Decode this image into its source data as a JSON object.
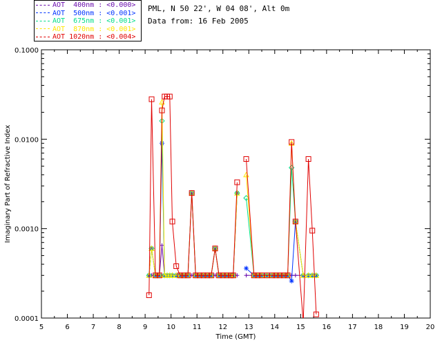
{
  "header": {
    "line1": "PML, N 50 22', W 04 08', Alt 0m",
    "line2": "Data from: 16 Feb 2005"
  },
  "chart_data": {
    "type": "line",
    "xlabel": "Time (GMT)",
    "ylabel": "Imaginary Part of Refractive Index",
    "xlim": [
      5,
      20
    ],
    "ylim": [
      0.0001,
      0.1
    ],
    "yscale": "log",
    "grid": false,
    "legend_placement": "top-left",
    "x_ticks": [
      "5",
      "6",
      "7",
      "8",
      "9",
      "10",
      "11",
      "12",
      "13",
      "14",
      "15",
      "16",
      "17",
      "18",
      "19",
      "20"
    ],
    "y_ticks": [
      "0.0001",
      "0.0010",
      "0.0100",
      "0.1000"
    ],
    "series": [
      {
        "name": "AOT  400nm : <0.000>",
        "color": "#6a0dad",
        "marker": "plus",
        "x": [
          9.15,
          9.25,
          9.4,
          9.55,
          9.65,
          9.75,
          9.85,
          9.95,
          10.05,
          10.2,
          10.35,
          10.5,
          10.65,
          10.8,
          10.95,
          11.1,
          11.25,
          11.4,
          11.55,
          11.7,
          11.85,
          12.0,
          12.15,
          12.3,
          12.4,
          12.55,
          12.9,
          13.2,
          13.35,
          13.5,
          13.7,
          13.9,
          14.05,
          14.2,
          14.35,
          14.5,
          14.65,
          14.8,
          15.1,
          15.3,
          15.45,
          15.6
        ],
        "y": [
          0.0003,
          0.0003,
          0.0003,
          0.0003,
          0.00065,
          0.0003,
          0.0003,
          0.0003,
          0.0003,
          0.0003,
          0.0003,
          0.0003,
          0.0003,
          0.0003,
          0.0003,
          0.0003,
          0.0003,
          0.0003,
          0.0003,
          0.0003,
          0.0003,
          0.0003,
          0.0003,
          0.0003,
          0.0003,
          0.0003,
          0.0003,
          0.0003,
          0.0003,
          0.0003,
          0.0003,
          0.0003,
          0.0003,
          0.0003,
          0.0003,
          0.0003,
          0.0003,
          0.0003,
          0.0003,
          0.0003,
          0.0003,
          0.0003
        ]
      },
      {
        "name": "AOT  500nm : <0.001>",
        "color": "#0033ff",
        "marker": "asterisk",
        "x": [
          9.15,
          9.25,
          9.4,
          9.55,
          9.65,
          9.75,
          9.85,
          9.95,
          10.05,
          10.2,
          10.35,
          10.5,
          10.65,
          10.8,
          10.95,
          11.1,
          11.25,
          11.4,
          11.55,
          11.7,
          11.85,
          12.0,
          12.15,
          12.3,
          12.4,
          12.55,
          12.9,
          13.2,
          13.35,
          13.5,
          13.7,
          13.9,
          14.05,
          14.2,
          14.35,
          14.5,
          14.65,
          14.8,
          15.1,
          15.3,
          15.45,
          15.6
        ],
        "y": [
          0.0003,
          0.0006,
          0.0003,
          0.0003,
          0.009,
          0.0003,
          0.0003,
          0.0003,
          0.0003,
          0.0003,
          0.0003,
          0.0003,
          0.0003,
          0.0025,
          0.0003,
          0.0003,
          0.0003,
          0.0003,
          0.0003,
          0.0006,
          0.0003,
          0.0003,
          0.0003,
          0.0003,
          0.0003,
          0.0025,
          0.00036,
          0.0003,
          0.0003,
          0.0003,
          0.0003,
          0.0003,
          0.0003,
          0.0003,
          0.0003,
          0.0003,
          0.00026,
          0.0012,
          0.0003,
          0.0003,
          0.0003,
          0.0003
        ]
      },
      {
        "name": "AOT  675nm : <0.001>",
        "color": "#00dd88",
        "marker": "diamond",
        "x": [
          9.15,
          9.25,
          9.4,
          9.55,
          9.65,
          9.75,
          9.85,
          9.95,
          10.05,
          10.2,
          10.35,
          10.5,
          10.65,
          10.8,
          10.95,
          11.1,
          11.25,
          11.4,
          11.55,
          11.7,
          11.85,
          12.0,
          12.15,
          12.3,
          12.4,
          12.55,
          12.9,
          13.2,
          13.35,
          13.5,
          13.7,
          13.9,
          14.05,
          14.2,
          14.35,
          14.5,
          14.65,
          14.8,
          15.1,
          15.3,
          15.45,
          15.6
        ],
        "y": [
          0.0003,
          0.0006,
          0.0003,
          0.0003,
          0.016,
          0.0003,
          0.0003,
          0.0003,
          0.0003,
          0.0003,
          0.0003,
          0.0003,
          0.0003,
          0.0025,
          0.0003,
          0.0003,
          0.0003,
          0.0003,
          0.0003,
          0.0006,
          0.0003,
          0.0003,
          0.0003,
          0.0003,
          0.0003,
          0.0025,
          0.0022,
          0.0003,
          0.0003,
          0.0003,
          0.0003,
          0.0003,
          0.0003,
          0.0003,
          0.0003,
          0.0003,
          0.0048,
          0.0012,
          0.0003,
          0.0003,
          0.0003,
          0.0003
        ]
      },
      {
        "name": "AOT  870nm : <0.001>",
        "color": "#ffe600",
        "marker": "triangle",
        "x": [
          9.15,
          9.25,
          9.4,
          9.55,
          9.65,
          9.75,
          9.85,
          9.95,
          10.05,
          10.2,
          10.35,
          10.5,
          10.65,
          10.8,
          10.95,
          11.1,
          11.25,
          11.4,
          11.55,
          11.7,
          11.85,
          12.0,
          12.15,
          12.3,
          12.4,
          12.55,
          12.9,
          13.2,
          13.35,
          13.5,
          13.7,
          13.9,
          14.05,
          14.2,
          14.35,
          14.5,
          14.65,
          14.8,
          15.1,
          15.3,
          15.45,
          15.6
        ],
        "y": [
          0.0003,
          0.0006,
          0.0003,
          0.0003,
          0.026,
          0.0003,
          0.0003,
          0.0003,
          0.0003,
          0.0003,
          0.0003,
          0.0003,
          0.0003,
          0.0025,
          0.0003,
          0.0003,
          0.0003,
          0.0003,
          0.0003,
          0.0006,
          0.0003,
          0.0003,
          0.0003,
          0.0003,
          0.0003,
          0.0025,
          0.004,
          0.0003,
          0.0003,
          0.0003,
          0.0003,
          0.0003,
          0.0003,
          0.0003,
          0.0003,
          0.0003,
          0.009,
          0.0012,
          0.0003,
          0.0003,
          0.0003,
          0.0003
        ]
      },
      {
        "name": "AOT 1020nm : <0.004>",
        "color": "#e00000",
        "marker": "square",
        "x": [
          9.15,
          9.25,
          9.4,
          9.55,
          9.65,
          9.75,
          9.85,
          9.95,
          10.05,
          10.2,
          10.35,
          10.5,
          10.65,
          10.8,
          10.95,
          11.1,
          11.25,
          11.4,
          11.55,
          11.7,
          11.85,
          12.0,
          12.15,
          12.3,
          12.4,
          12.55,
          12.9,
          13.2,
          13.35,
          13.5,
          13.7,
          13.9,
          14.05,
          14.2,
          14.35,
          14.5,
          14.65,
          14.8,
          15.1,
          15.3,
          15.45,
          15.6
        ],
        "y": [
          0.00018,
          0.028,
          0.0003,
          0.0003,
          0.021,
          0.03,
          0.03,
          0.03,
          0.0012,
          0.00038,
          0.0003,
          0.0003,
          0.0003,
          0.0025,
          0.0003,
          0.0003,
          0.0003,
          0.0003,
          0.0003,
          0.0006,
          0.0003,
          0.0003,
          0.0003,
          0.0003,
          0.0003,
          0.0033,
          0.006,
          0.0003,
          0.0003,
          0.0003,
          0.0003,
          0.0003,
          0.0003,
          0.0003,
          0.0003,
          0.0003,
          0.0093,
          0.0012,
          9e-05,
          0.006,
          0.00095,
          0.00011
        ]
      }
    ]
  }
}
